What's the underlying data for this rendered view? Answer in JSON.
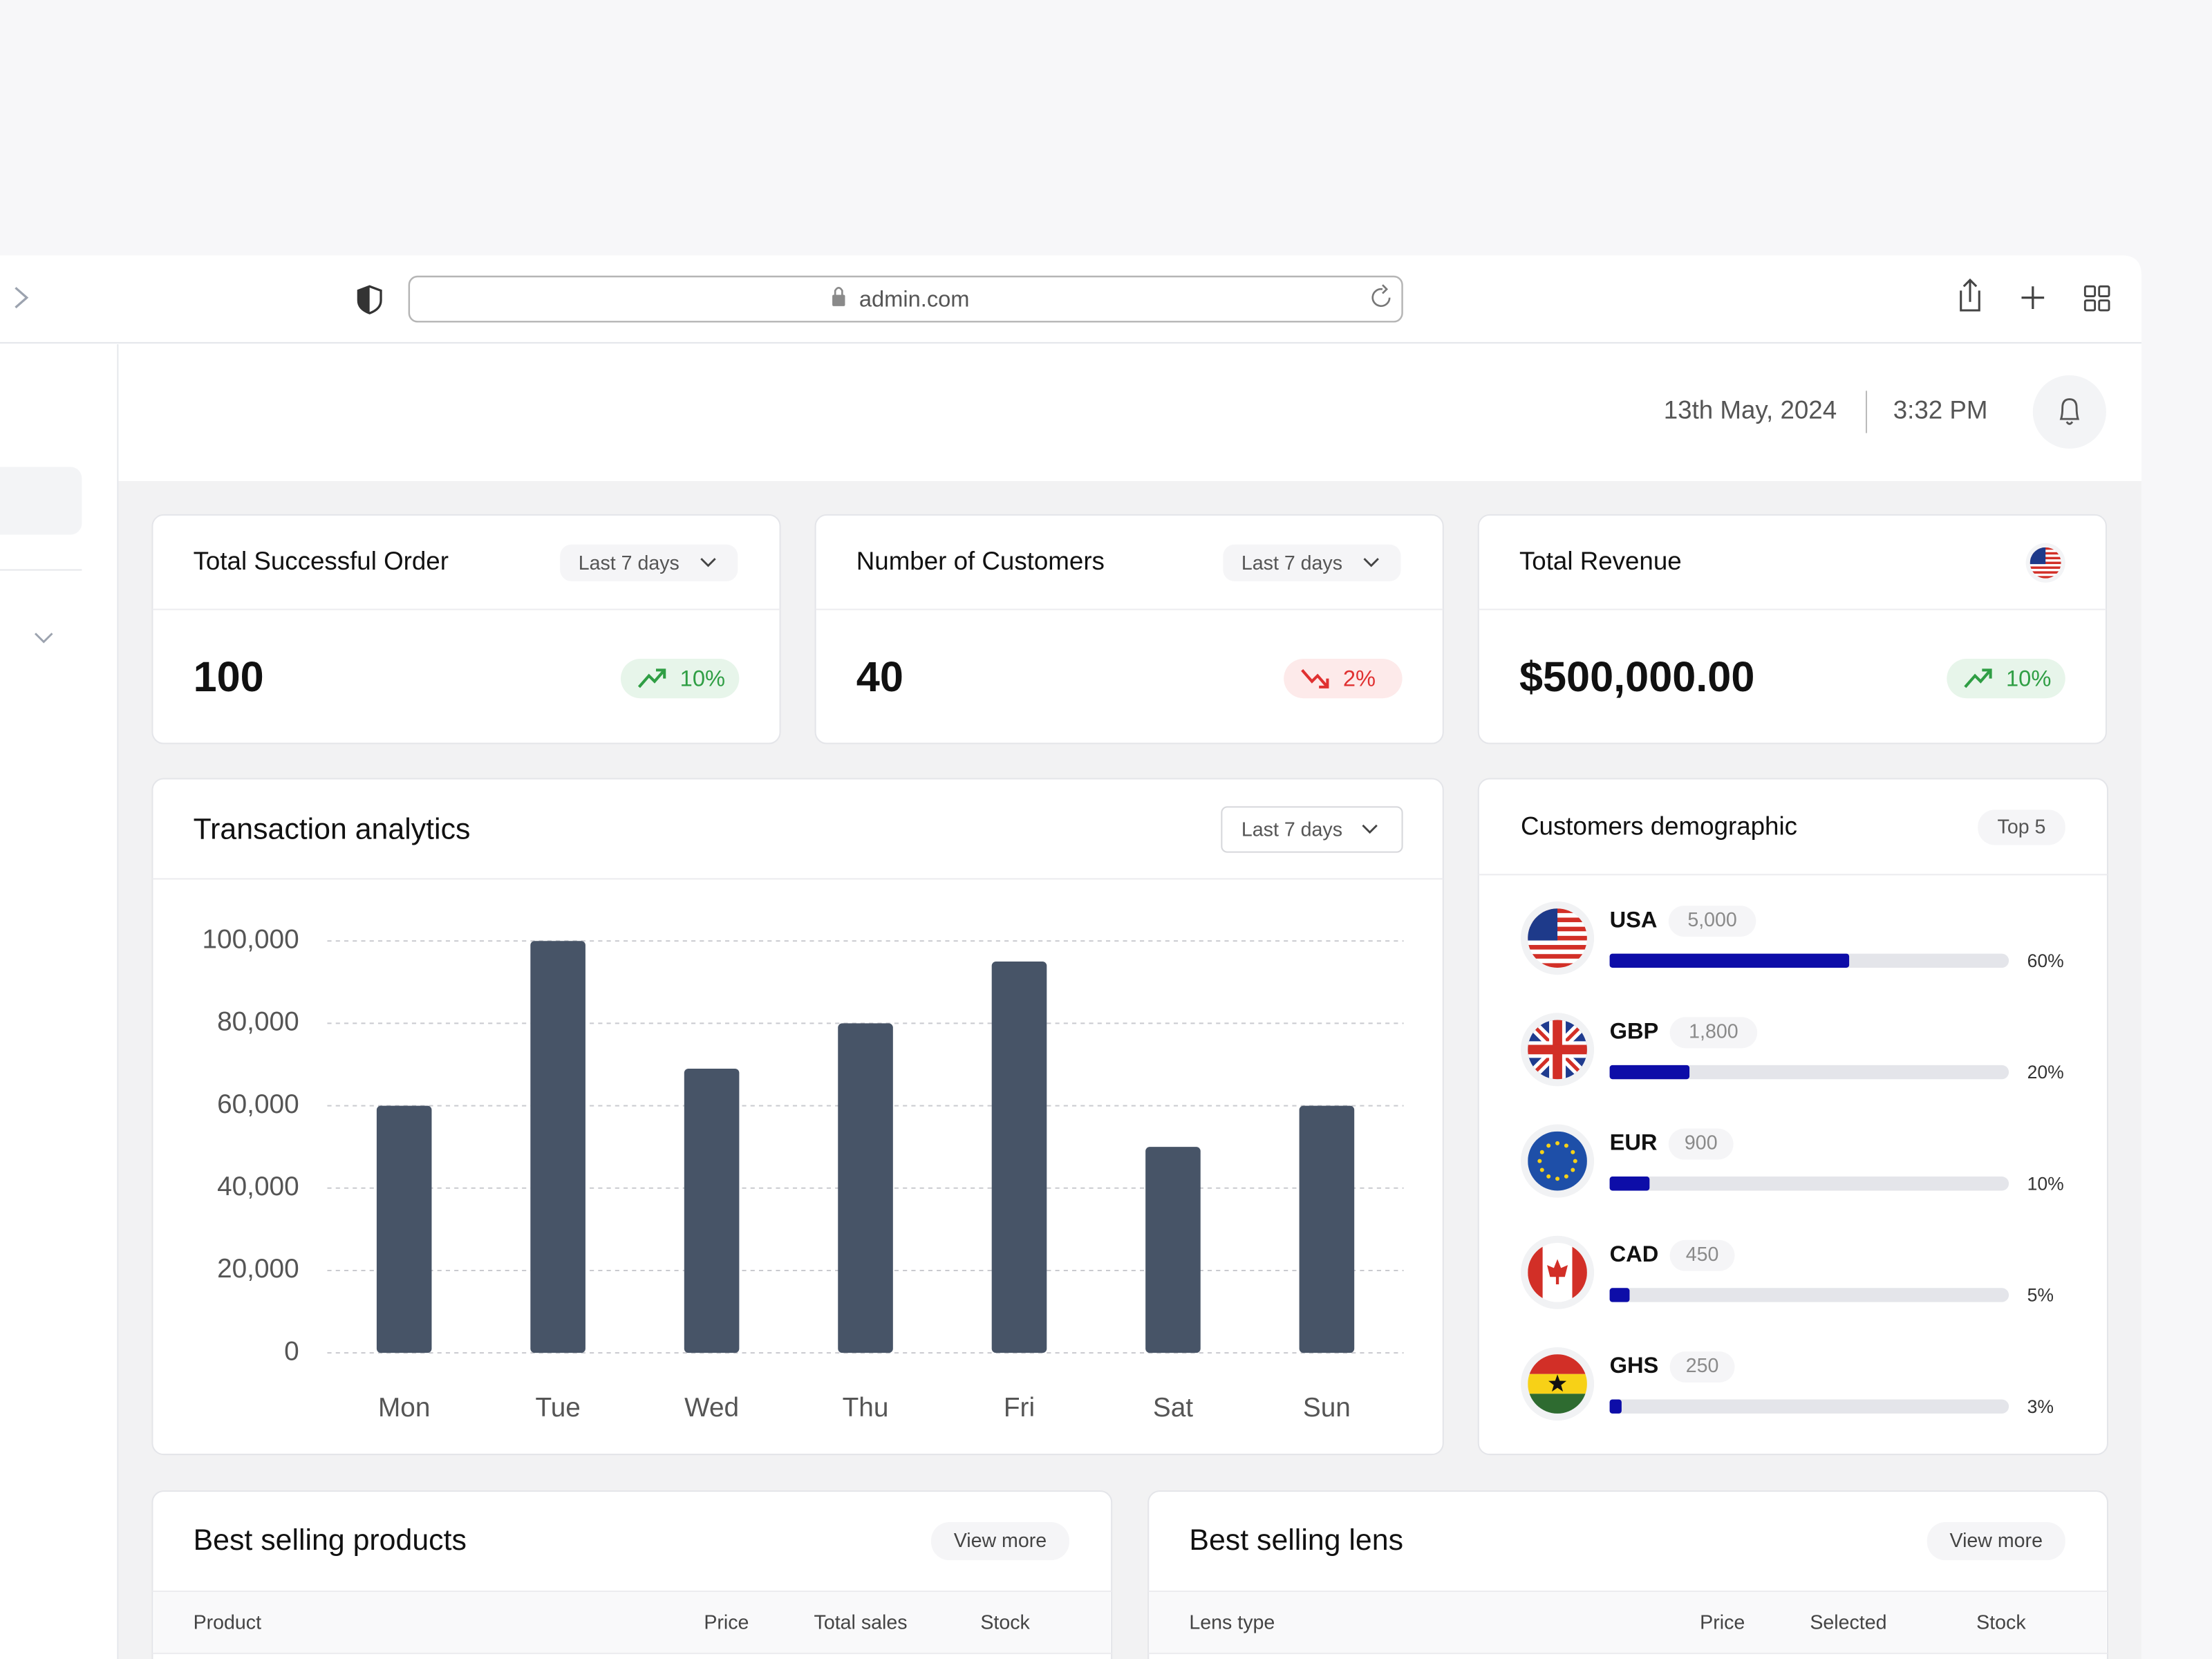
{
  "browser": {
    "url": "admin.com"
  },
  "header": {
    "date": "13th May, 2024",
    "time": "3:32 PM"
  },
  "stats": [
    {
      "title": "Total Successful Order",
      "period": "Last 7 days",
      "value": 100,
      "change": "10%",
      "trend": "up"
    },
    {
      "title": "Number of Customers",
      "period": "Last 7 days",
      "value": 40,
      "change": "2%",
      "trend": "down"
    },
    {
      "title": "Total Revenue",
      "flag": "us",
      "value": "$500,000.00",
      "change": "10%",
      "trend": "up"
    }
  ],
  "chart_data": {
    "type": "bar",
    "title": "Transaction analytics",
    "period": "Last 7 days",
    "categories": [
      "Mon",
      "Tue",
      "Wed",
      "Thu",
      "Fri",
      "Sat",
      "Sun"
    ],
    "values": [
      60000,
      100000,
      69000,
      80000,
      95000,
      50000,
      60000
    ],
    "color": "#475467",
    "ylim": [
      0,
      100000
    ],
    "yticks": [
      0,
      {
        "value": 20000,
        "label": "20,000"
      },
      {
        "value": 40000,
        "label": "40,000"
      },
      {
        "value": 60000,
        "label": "60,000"
      },
      {
        "value": 80000,
        "label": "80,000"
      },
      {
        "value": 100000,
        "label": "100,000"
      }
    ],
    "grid": true
  },
  "demographics": {
    "title": "Customers demographic",
    "filter": "Top 5",
    "rows": [
      {
        "name": "USA",
        "count": "5,000",
        "percent": 60,
        "percent_label": "60%",
        "flag": "us"
      },
      {
        "name": "GBP",
        "count": "1,800",
        "percent": 20,
        "percent_label": "20%",
        "flag": "gb"
      },
      {
        "name": "EUR",
        "count": "900",
        "percent": 10,
        "percent_label": "10%",
        "flag": "eu"
      },
      {
        "name": "CAD",
        "count": "450",
        "percent": 5,
        "percent_label": "5%",
        "flag": "ca"
      },
      {
        "name": "GHS",
        "count": "250",
        "percent": 3,
        "percent_label": "3%",
        "flag": "gh"
      }
    ]
  },
  "tables": [
    {
      "title": "Best selling products",
      "action": "View more",
      "columns": [
        "Product",
        "Price",
        "Total sales",
        "Stock"
      ]
    },
    {
      "title": "Best selling lens",
      "action": "View more",
      "columns": [
        "Lens type",
        "Price",
        "Selected",
        "Stock"
      ]
    }
  ]
}
